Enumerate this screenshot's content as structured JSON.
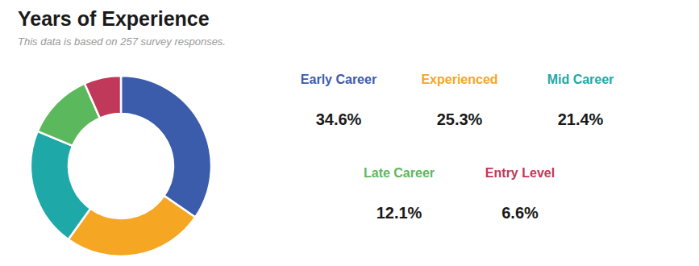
{
  "chart_data": {
    "type": "donut",
    "title": "Years of Experience",
    "subtitle": "This data is based on 257 survey responses.",
    "categories": [
      "Early Career",
      "Experienced",
      "Mid Career",
      "Late Career",
      "Entry Level"
    ],
    "values": [
      34.6,
      25.3,
      21.4,
      12.1,
      6.6
    ],
    "value_labels": [
      "34.6%",
      "25.3%",
      "21.4%",
      "12.1%",
      "6.6%"
    ],
    "colors": [
      "#3b5bab",
      "#f5a623",
      "#1fa8a8",
      "#5cb85c",
      "#c0395a"
    ],
    "legend": "right"
  }
}
